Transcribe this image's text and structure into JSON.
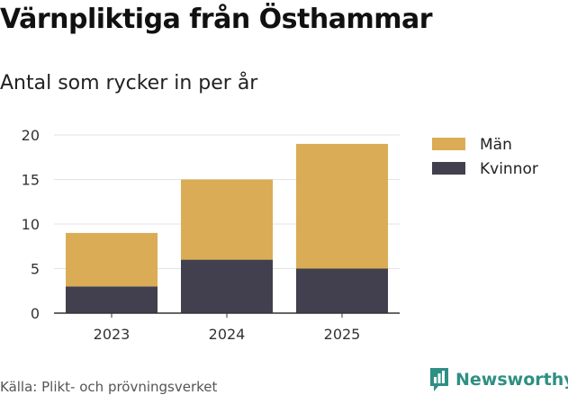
{
  "title": "Värnpliktiga från Östhammar",
  "subtitle": "Antal som rycker in per år",
  "source": "Källa: Plikt- och prövningsverket",
  "brand": {
    "name": "Newsworthy",
    "icon": "newsworthy-logo-icon",
    "color": "#2e8f83"
  },
  "chart_data": {
    "type": "bar",
    "stacked": true,
    "categories": [
      "2023",
      "2024",
      "2025"
    ],
    "series": [
      {
        "name": "Kvinnor",
        "values": [
          3,
          6,
          5
        ],
        "color": "#42404e"
      },
      {
        "name": "Män",
        "values": [
          6,
          9,
          14
        ],
        "color": "#daac56"
      }
    ],
    "ylim": [
      0,
      20
    ],
    "yticks": [
      "0",
      "5",
      "10",
      "15",
      "20"
    ],
    "xlabel": "",
    "ylabel": "",
    "grid": true,
    "legend": {
      "placement": "right",
      "order": [
        "Män",
        "Kvinnor"
      ]
    }
  }
}
